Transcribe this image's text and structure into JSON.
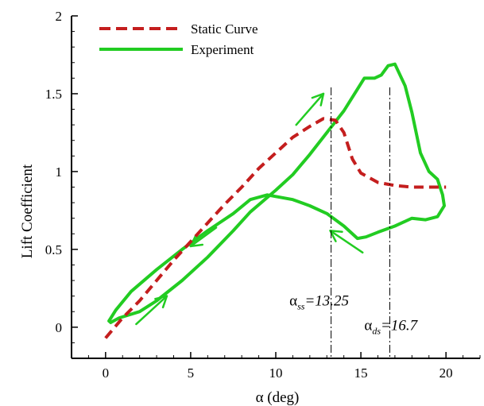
{
  "chart_data": {
    "type": "line",
    "title": "",
    "xlabel": "α (deg)",
    "ylabel": "Lift  Coefficient",
    "xlim": [
      -2,
      22
    ],
    "ylim": [
      -0.2,
      2
    ],
    "xticks": [
      0,
      5,
      10,
      15,
      20
    ],
    "yticks": [
      0,
      0.5,
      1,
      1.5,
      2
    ],
    "xtick_labels": [
      "0",
      "5",
      "10",
      "15",
      "20"
    ],
    "ytick_labels": [
      "0",
      "0.5",
      "1",
      "1.5",
      "2"
    ],
    "grid": false,
    "legend_position": "top-left",
    "series": [
      {
        "name": "Static Curve",
        "style": "dashed",
        "color": "#c41e1e",
        "points": [
          [
            0,
            -0.07
          ],
          [
            1,
            0.06
          ],
          [
            2,
            0.17
          ],
          [
            3,
            0.3
          ],
          [
            4,
            0.43
          ],
          [
            5,
            0.55
          ],
          [
            6,
            0.67
          ],
          [
            7,
            0.79
          ],
          [
            8,
            0.9
          ],
          [
            9,
            1.02
          ],
          [
            10,
            1.12
          ],
          [
            11,
            1.22
          ],
          [
            12,
            1.29
          ],
          [
            12.8,
            1.34
          ],
          [
            13.5,
            1.33
          ],
          [
            14,
            1.25
          ],
          [
            14.5,
            1.08
          ],
          [
            15,
            0.99
          ],
          [
            16,
            0.93
          ],
          [
            17,
            0.91
          ],
          [
            18,
            0.9
          ],
          [
            19,
            0.9
          ],
          [
            20,
            0.9
          ]
        ]
      },
      {
        "name": "Experiment",
        "style": "solid",
        "color": "#22cc22",
        "points": [
          [
            0.3,
            0.03
          ],
          [
            0.8,
            0.06
          ],
          [
            2,
            0.1
          ],
          [
            3,
            0.17
          ],
          [
            4.5,
            0.3
          ],
          [
            6,
            0.45
          ],
          [
            7.5,
            0.62
          ],
          [
            8.5,
            0.74
          ],
          [
            10,
            0.88
          ],
          [
            11,
            0.98
          ],
          [
            12,
            1.11
          ],
          [
            13,
            1.25
          ],
          [
            14,
            1.39
          ],
          [
            15.2,
            1.6
          ],
          [
            15.8,
            1.6
          ],
          [
            16.2,
            1.62
          ],
          [
            16.6,
            1.68
          ],
          [
            17,
            1.69
          ],
          [
            17.6,
            1.55
          ],
          [
            18,
            1.38
          ],
          [
            18.5,
            1.12
          ],
          [
            19,
            1.0
          ],
          [
            19.5,
            0.95
          ],
          [
            19.8,
            0.85
          ],
          [
            19.9,
            0.78
          ],
          [
            19.5,
            0.71
          ],
          [
            18.8,
            0.69
          ],
          [
            18,
            0.7
          ],
          [
            17,
            0.65
          ],
          [
            16,
            0.61
          ],
          [
            15.3,
            0.58
          ],
          [
            14.8,
            0.57
          ],
          [
            14,
            0.65
          ],
          [
            13,
            0.73
          ],
          [
            12,
            0.78
          ],
          [
            11,
            0.82
          ],
          [
            10,
            0.84
          ],
          [
            9.5,
            0.85
          ],
          [
            8.5,
            0.82
          ],
          [
            7.5,
            0.73
          ],
          [
            6,
            0.62
          ],
          [
            4.5,
            0.5
          ],
          [
            3,
            0.37
          ],
          [
            1.5,
            0.23
          ],
          [
            0.6,
            0.11
          ],
          [
            0.2,
            0.04
          ],
          [
            0.3,
            0.03
          ]
        ]
      }
    ],
    "reference_lines": [
      {
        "x": 13.25,
        "label_main": "α",
        "label_sub": "ss",
        "label_value": "=13.25",
        "label_x": 10.8,
        "label_y": 0.14
      },
      {
        "x": 16.7,
        "label_main": "α",
        "label_sub": "ds",
        "label_value": "=16.7",
        "label_x": 15.2,
        "label_y": -0.02
      }
    ],
    "direction_arrows": [
      {
        "from": [
          11.2,
          1.3
        ],
        "to": [
          12.8,
          1.5
        ]
      },
      {
        "from": [
          6.5,
          0.64
        ],
        "to": [
          5.0,
          0.52
        ]
      },
      {
        "from": [
          1.8,
          0.02
        ],
        "to": [
          3.6,
          0.2
        ]
      },
      {
        "from": [
          15.1,
          0.48
        ],
        "to": [
          13.2,
          0.62
        ]
      }
    ]
  }
}
